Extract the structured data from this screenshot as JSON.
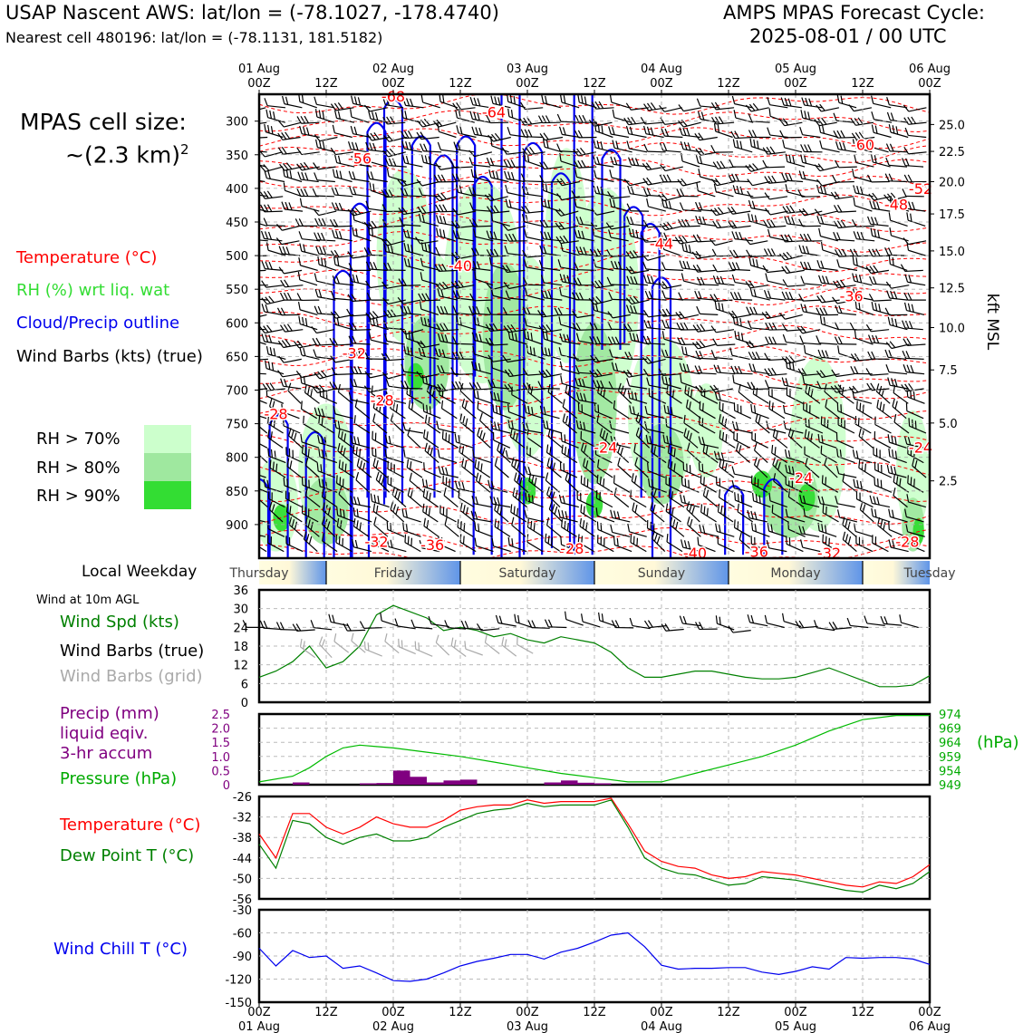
{
  "header": {
    "title": "USAP Nascent AWS: lat/lon = (-78.1027, -178.4740)",
    "subtitle": "Nearest cell 480196: lat/lon = (-78.1131, 181.5182)",
    "cycle_label": "AMPS MPAS Forecast Cycle:",
    "cycle_value": "2025-08-01 / 00 UTC"
  },
  "cell_size": {
    "line1": "MPAS cell size:",
    "line2": "~(2.3 km)",
    "sup": "2"
  },
  "legend": {
    "temperature": "Temperature (°C)",
    "rh": "RH (%) wrt liq. wat",
    "cloud": "Cloud/Precip outline",
    "barbs": "Wind Barbs (kts) (true)",
    "rh70": "RH > 70%",
    "rh80": "RH > 80%",
    "rh90": "RH > 90%",
    "colors": {
      "temp": "#ff0000",
      "rh": "#22cc22",
      "cloud": "#0000ee",
      "rh70": "#ccffcc",
      "rh80": "#9fe89f",
      "rh90": "#33dd33"
    }
  },
  "weekday": {
    "label": "Local Weekday",
    "days": [
      "Thursday",
      "Friday",
      "Saturday",
      "Sunday",
      "Monday",
      "Tuesday"
    ]
  },
  "time_axis": {
    "top_date_labels": [
      "01 Aug\n00Z",
      "12Z",
      "02 Aug\n00Z",
      "12Z",
      "03 Aug\n00Z",
      "12Z",
      "04 Aug\n00Z",
      "12Z",
      "05 Aug\n00Z",
      "12Z",
      "06 Aug\n00Z"
    ],
    "bottom_hours": [
      "00Z",
      "12Z",
      "00Z",
      "12Z",
      "00Z",
      "12Z",
      "00Z",
      "12Z",
      "00Z",
      "12Z",
      "00Z"
    ],
    "bottom_dates": [
      "01 Aug",
      "",
      "02 Aug",
      "",
      "03 Aug",
      "",
      "04 Aug",
      "",
      "05 Aug",
      "",
      "06 Aug"
    ]
  },
  "panel_labels": {
    "wind_10m": "Wind at 10m AGL",
    "wind_spd": "Wind Spd (kts)",
    "wind_barbs_true": "Wind Barbs (true)",
    "wind_barbs_grid": "Wind Barbs (grid)",
    "precip1": "Precip (mm)",
    "precip2": "liquid eqiv.",
    "precip3": "3-hr accum",
    "pressure": "Pressure (hPa)",
    "pressure_unit": "(hPa)",
    "temp": "Temperature (°C)",
    "dewpoint": "Dew Point T (°C)",
    "windchill": "Wind Chill T (°C)",
    "kft": "kft MSL"
  },
  "chart_data": [
    {
      "type": "heatmap",
      "name": "cross-section",
      "x_hours": [
        0,
        120
      ],
      "pressure_ticks": [
        300,
        350,
        400,
        450,
        500,
        550,
        600,
        650,
        700,
        750,
        800,
        850,
        900
      ],
      "ylim_hpa": [
        260,
        950
      ],
      "kft_ticks": [
        "25.0",
        "22.5",
        "20.0",
        "17.5",
        "15.0",
        "12.5",
        "10.0",
        "7.5",
        "5.0",
        "2.5"
      ],
      "kft_tick_hpa": [
        305,
        345,
        390,
        438,
        493,
        548,
        607,
        670,
        749,
        835
      ],
      "temp_labels": [
        {
          "t": "-68",
          "hr": 24,
          "p": 263
        },
        {
          "t": "-64",
          "hr": 42,
          "p": 286
        },
        {
          "t": "-56",
          "hr": 18,
          "p": 355
        },
        {
          "t": "-60",
          "hr": 108,
          "p": 335
        },
        {
          "t": "-52",
          "hr": 120,
          "p": 400
        },
        {
          "t": "-48",
          "hr": 114,
          "p": 424
        },
        {
          "t": "-44",
          "hr": 72,
          "p": 482
        },
        {
          "t": "-40",
          "hr": 36,
          "p": 515
        },
        {
          "t": "-36",
          "hr": 106,
          "p": 560
        },
        {
          "t": "-32",
          "hr": 17,
          "p": 645
        },
        {
          "t": "-28",
          "hr": 3,
          "p": 735
        },
        {
          "t": "-28",
          "hr": 22,
          "p": 715
        },
        {
          "t": "-24",
          "hr": 62,
          "p": 785
        },
        {
          "t": "-24",
          "hr": 120,
          "p": 785
        },
        {
          "t": "-24",
          "hr": 97,
          "p": 830
        },
        {
          "t": "-32",
          "hr": 21,
          "p": 925
        },
        {
          "t": "-36",
          "hr": 31,
          "p": 930
        },
        {
          "t": "-28",
          "hr": 56,
          "p": 935
        },
        {
          "t": "-40",
          "hr": 78,
          "p": 942
        },
        {
          "t": "-36",
          "hr": 89,
          "p": 940
        },
        {
          "t": "-32",
          "hr": 102,
          "p": 942
        },
        {
          "t": "-28",
          "hr": 116,
          "p": 925
        }
      ]
    },
    {
      "type": "line",
      "name": "wind-speed",
      "ylabel": "Wind Spd (kts)",
      "ylim": [
        0,
        36
      ],
      "yticks": [
        0,
        6,
        12,
        18,
        24,
        30,
        36
      ],
      "x": [
        0,
        3,
        6,
        9,
        12,
        15,
        18,
        21,
        24,
        27,
        30,
        33,
        36,
        39,
        42,
        45,
        48,
        51,
        54,
        57,
        60,
        63,
        66,
        69,
        72,
        75,
        78,
        81,
        84,
        87,
        90,
        93,
        96,
        99,
        102,
        105,
        108,
        111,
        114,
        117,
        120
      ],
      "values": [
        8,
        10,
        13,
        18,
        11,
        13,
        18,
        28,
        31,
        29,
        27,
        23,
        24,
        23,
        21,
        22,
        20,
        19,
        21,
        20,
        19,
        16,
        11,
        8,
        8,
        9,
        10,
        10,
        9,
        8,
        7.5,
        7.5,
        8,
        9.5,
        11,
        9,
        7,
        5,
        5,
        5.5,
        8.5
      ]
    },
    {
      "type": "bar",
      "name": "precip-pressure",
      "precip_ylim": [
        0,
        2.5
      ],
      "precip_yticks": [
        "0",
        "0.5",
        "1.0",
        "1.5",
        "2.0",
        "2.5"
      ],
      "pressure_ylim": [
        949,
        974
      ],
      "pressure_yticks": [
        "949",
        "954",
        "959",
        "964",
        "969",
        "974"
      ],
      "precip_x": [
        7.5,
        19.5,
        22.5,
        25.5,
        28.5,
        31.5,
        34.5,
        37.5,
        52.5,
        55.5,
        58.5,
        61.5
      ],
      "precip_values": [
        0.08,
        0.05,
        0.06,
        0.5,
        0.28,
        0.08,
        0.15,
        0.18,
        0.08,
        0.15,
        0.07,
        0.05
      ],
      "pressure_x": [
        0,
        6,
        9,
        12,
        15,
        18,
        21,
        24,
        30,
        36,
        42,
        48,
        54,
        60,
        66,
        72,
        78,
        84,
        90,
        96,
        102,
        108,
        114,
        120
      ],
      "pressure_values": [
        950,
        952,
        955,
        959,
        962,
        963,
        962.5,
        962,
        960.5,
        959,
        957,
        955,
        953,
        951.5,
        950,
        950,
        953,
        956,
        959,
        963,
        968,
        972,
        973.5,
        973.5
      ]
    },
    {
      "type": "line",
      "name": "temperature-dewpoint",
      "ylim": [
        -56,
        -26
      ],
      "yticks": [
        -26,
        -32,
        -38,
        -44,
        -50,
        -56
      ],
      "x": [
        0,
        3,
        6,
        9,
        12,
        15,
        18,
        21,
        24,
        27,
        30,
        33,
        36,
        39,
        42,
        45,
        48,
        51,
        54,
        57,
        60,
        63,
        66,
        69,
        72,
        75,
        78,
        81,
        84,
        87,
        90,
        93,
        96,
        99,
        102,
        105,
        108,
        111,
        114,
        117,
        120
      ],
      "series": [
        {
          "name": "Temperature (°C)",
          "color": "#ff0000",
          "values": [
            -37,
            -44,
            -31,
            -31,
            -35,
            -37,
            -35,
            -32,
            -34,
            -35,
            -35,
            -33,
            -30,
            -29,
            -28.5,
            -28.5,
            -27,
            -28,
            -27.5,
            -27.5,
            -27.5,
            -26.5,
            -34,
            -42,
            -45,
            -46.5,
            -47,
            -49,
            -50,
            -49.5,
            -48,
            -48.5,
            -49,
            -50,
            -51,
            -52,
            -52.5,
            -51,
            -51.5,
            -49.5,
            -46
          ]
        },
        {
          "name": "Dew Point T (°C)",
          "color": "#008000",
          "values": [
            -40,
            -47,
            -33,
            -34,
            -38,
            -40,
            -38,
            -37,
            -39,
            -39,
            -38,
            -35,
            -33,
            -31,
            -30,
            -29.5,
            -28,
            -29,
            -28.5,
            -28.5,
            -28.5,
            -27,
            -35,
            -44,
            -47,
            -48.5,
            -49,
            -50.5,
            -52,
            -51.5,
            -49.5,
            -50,
            -50.5,
            -51.5,
            -52.5,
            -53.5,
            -54,
            -52,
            -53,
            -51.5,
            -48
          ]
        }
      ]
    },
    {
      "type": "line",
      "name": "wind-chill",
      "ylim": [
        -150,
        -30
      ],
      "yticks": [
        -30,
        -60,
        -90,
        -120,
        -150
      ],
      "x": [
        0,
        3,
        6,
        9,
        12,
        15,
        18,
        21,
        24,
        27,
        30,
        33,
        36,
        39,
        42,
        45,
        48,
        51,
        54,
        57,
        60,
        63,
        66,
        69,
        72,
        75,
        78,
        81,
        84,
        87,
        90,
        93,
        96,
        99,
        102,
        105,
        108,
        111,
        114,
        117,
        120
      ],
      "values": [
        -80,
        -103,
        -83,
        -92,
        -90,
        -106,
        -103,
        -112,
        -122,
        -123,
        -120,
        -112,
        -103,
        -97,
        -93,
        -88,
        -88,
        -94,
        -85,
        -80,
        -72,
        -63,
        -60,
        -78,
        -102,
        -107,
        -106,
        -106,
        -105,
        -105,
        -111,
        -114,
        -110,
        -104,
        -107,
        -92,
        -93,
        -92,
        -92,
        -94,
        -101
      ]
    }
  ]
}
